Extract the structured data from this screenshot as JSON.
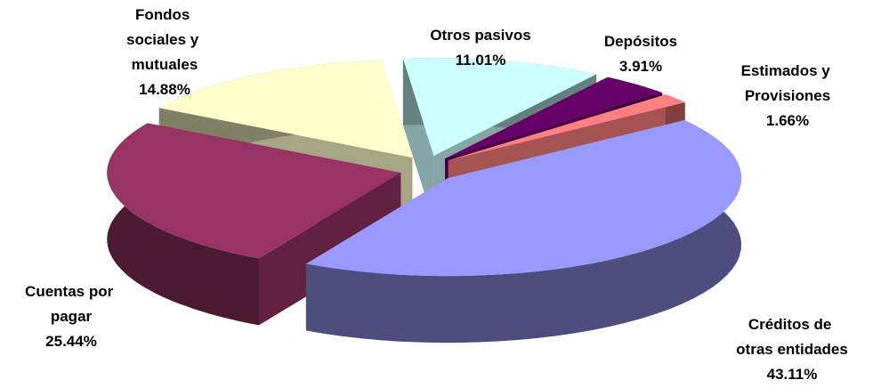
{
  "chart_data": {
    "type": "pie",
    "categories": [
      "Otros pasivos",
      "Depósitos",
      "Estimados y Provisiones",
      "Créditos de otras entidades",
      "Cuentas por pagar",
      "Fondos sociales y mutuales"
    ],
    "values": [
      11.01,
      3.91,
      1.66,
      43.11,
      25.44,
      14.88
    ],
    "value_labels": [
      "11.01%",
      "3.91%",
      "1.66%",
      "43.11%",
      "25.44%",
      "14.88%"
    ],
    "colors": [
      "#ccffff",
      "#660066",
      "#ff8080",
      "#9999ff",
      "#993366",
      "#ffffcc"
    ]
  }
}
